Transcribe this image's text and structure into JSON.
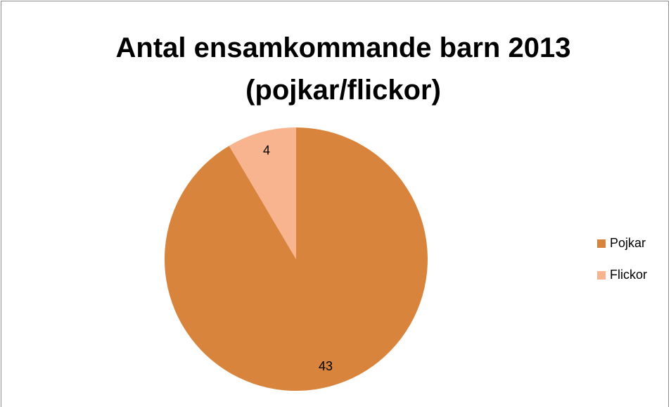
{
  "chart_data": {
    "type": "pie",
    "title": "Antal ensamkommande barn 2013 (pojkar/flickor)",
    "categories": [
      "Pojkar",
      "Flickor"
    ],
    "values": [
      43,
      4
    ],
    "colors": [
      "#d9843d",
      "#f8b48e"
    ],
    "legend": "right"
  }
}
